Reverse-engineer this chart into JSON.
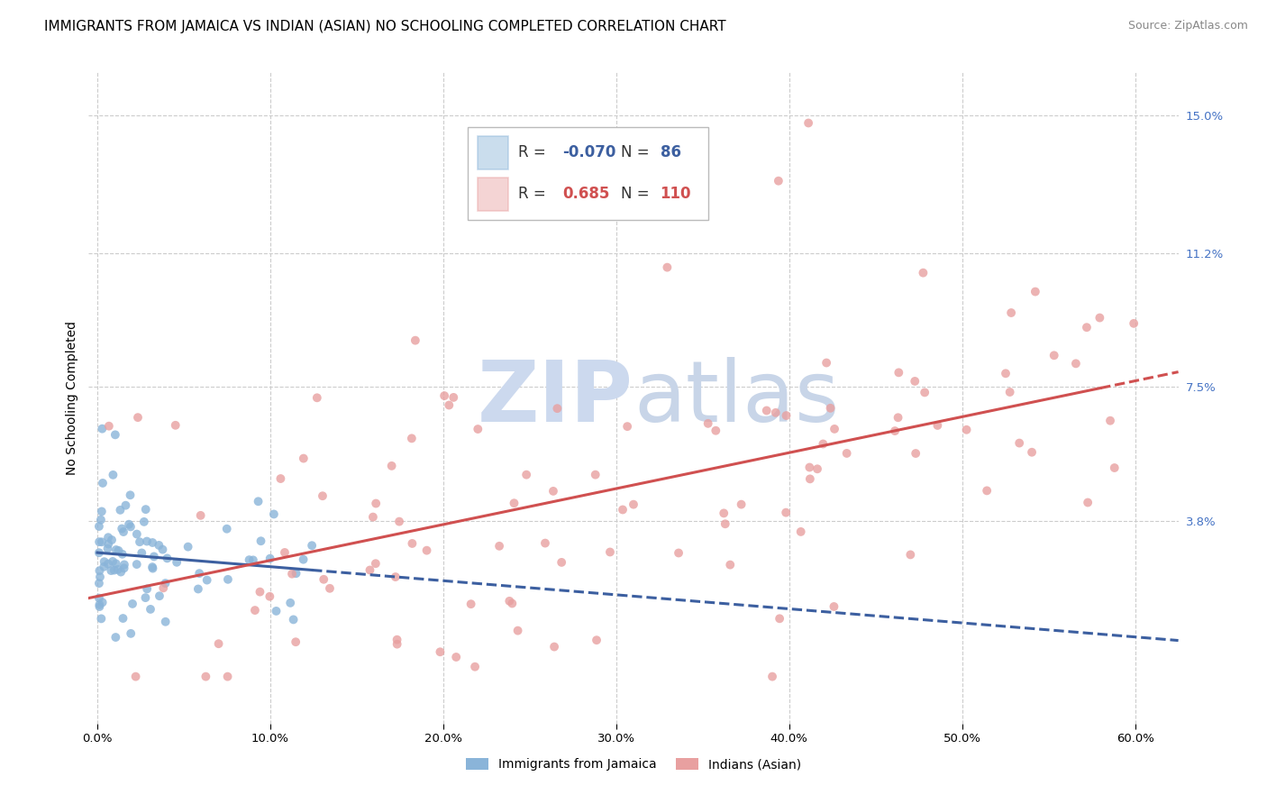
{
  "title": "IMMIGRANTS FROM JAMAICA VS INDIAN (ASIAN) NO SCHOOLING COMPLETED CORRELATION CHART",
  "source": "Source: ZipAtlas.com",
  "ylabel": "No Schooling Completed",
  "xlabel_ticks": [
    "0.0%",
    "10.0%",
    "20.0%",
    "30.0%",
    "40.0%",
    "50.0%",
    "60.0%"
  ],
  "xlabel_vals": [
    0.0,
    0.1,
    0.2,
    0.3,
    0.4,
    0.5,
    0.6
  ],
  "ylabel_ticks": [
    "3.8%",
    "7.5%",
    "11.2%",
    "15.0%"
  ],
  "ylabel_vals": [
    0.038,
    0.075,
    0.112,
    0.15
  ],
  "xlim": [
    -0.005,
    0.625
  ],
  "ylim": [
    -0.018,
    0.162
  ],
  "jamaica_color": "#8ab4d9",
  "indian_color": "#e8a0a0",
  "jamaica_line_color": "#3c5fa0",
  "indian_line_color": "#d05050",
  "background_color": "#ffffff",
  "grid_color": "#cccccc",
  "watermark_color": "#ccd9ee",
  "title_fontsize": 11,
  "source_fontsize": 9,
  "axis_label_fontsize": 10,
  "tick_fontsize": 9.5,
  "right_tick_color": "#4472c4"
}
